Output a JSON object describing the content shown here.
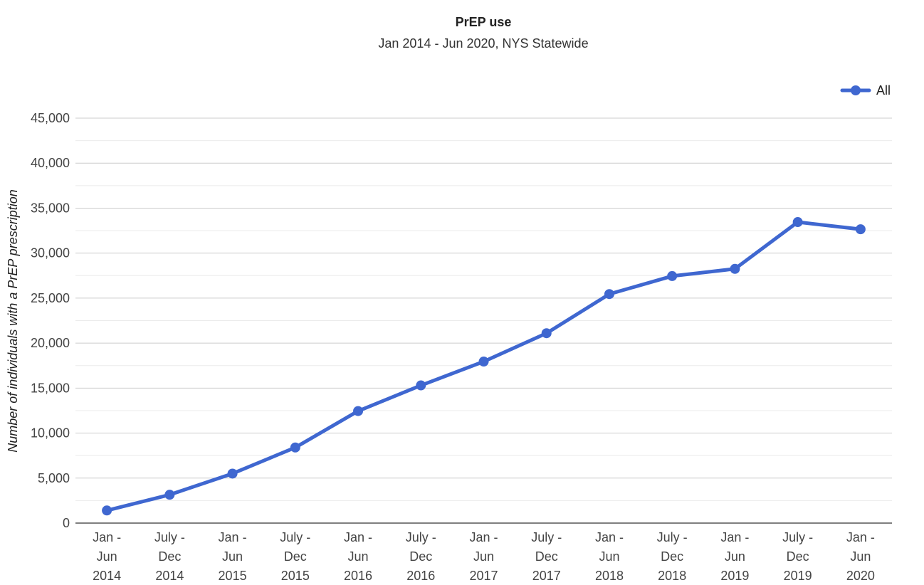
{
  "chart_data": {
    "type": "line",
    "title": "PrEP use",
    "subtitle": "Jan 2014 - Jun 2020, NYS Statewide",
    "xlabel": "",
    "ylabel": "Number of individuals with a PrEP prescription",
    "categories": [
      [
        "Jan -",
        "Jun",
        "2014"
      ],
      [
        "July -",
        "Dec",
        "2014"
      ],
      [
        "Jan -",
        "Jun",
        "2015"
      ],
      [
        "July -",
        "Dec",
        "2015"
      ],
      [
        "Jan -",
        "Jun",
        "2016"
      ],
      [
        "July -",
        "Dec",
        "2016"
      ],
      [
        "Jan -",
        "Jun",
        "2017"
      ],
      [
        "July -",
        "Dec",
        "2017"
      ],
      [
        "Jan -",
        "Jun",
        "2018"
      ],
      [
        "July -",
        "Dec",
        "2018"
      ],
      [
        "Jan -",
        "Jun",
        "2019"
      ],
      [
        "July -",
        "Dec",
        "2019"
      ],
      [
        "Jan -",
        "Jun",
        "2020"
      ]
    ],
    "series": [
      {
        "name": "All",
        "color": "#3f67d0",
        "values": [
          1400,
          3150,
          5500,
          8400,
          12450,
          15300,
          17950,
          21100,
          25450,
          27450,
          28250,
          33450,
          32650
        ]
      }
    ],
    "ylim": [
      0,
      45000
    ],
    "yticks": [
      0,
      5000,
      10000,
      15000,
      20000,
      25000,
      30000,
      35000,
      40000,
      45000
    ],
    "ytick_labels": [
      "0",
      "5,000",
      "10,000",
      "15,000",
      "20,000",
      "25,000",
      "30,000",
      "35,000",
      "40,000",
      "45,000"
    ],
    "grid": true,
    "legend_position": "top-right"
  }
}
